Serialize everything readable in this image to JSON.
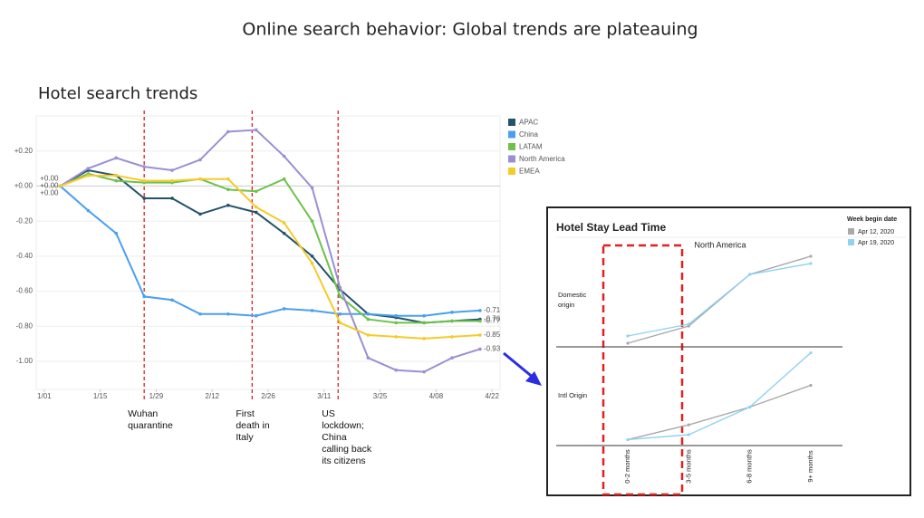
{
  "slide_title": "Online search behavior: Global trends are plateauing",
  "chart_data": [
    {
      "type": "line",
      "title": "Hotel search trends",
      "x": [
        4,
        11,
        18,
        25,
        32,
        39,
        46,
        53,
        60,
        67,
        74,
        81,
        88,
        95,
        102,
        109
      ],
      "xlim": [
        -2,
        114
      ],
      "xticks": [
        {
          "value": 0,
          "label": "1/01"
        },
        {
          "value": 14,
          "label": "1/15"
        },
        {
          "value": 28,
          "label": "1/29"
        },
        {
          "value": 42,
          "label": "2/12"
        },
        {
          "value": 56,
          "label": "2/26"
        },
        {
          "value": 70,
          "label": "3/11"
        },
        {
          "value": 84,
          "label": "3/25"
        },
        {
          "value": 98,
          "label": "4/08"
        },
        {
          "value": 112,
          "label": "4/22"
        }
      ],
      "ylim": [
        -1.16,
        0.4
      ],
      "yticks": [
        {
          "value": 0.2,
          "label": "+0.20"
        },
        {
          "value": 0,
          "label": "+0.00"
        },
        {
          "value": -0.2,
          "label": "-0.20"
        },
        {
          "value": -0.4,
          "label": "-0.40"
        },
        {
          "value": -0.6,
          "label": "-0.60"
        },
        {
          "value": -0.8,
          "label": "-0.80"
        },
        {
          "value": -1.0,
          "label": "-1.00"
        }
      ],
      "grid": true,
      "legend": "right",
      "series": [
        {
          "name": "APAC",
          "color": "#23536a",
          "values": [
            0,
            0.09,
            0.06,
            -0.07,
            -0.07,
            -0.16,
            -0.11,
            -0.15,
            -0.27,
            -0.4,
            -0.59,
            -0.73,
            -0.75,
            -0.78,
            -0.77,
            -0.76
          ],
          "value_labels": [
            "+0.00",
            null,
            null,
            null,
            null,
            null,
            null,
            null,
            null,
            null,
            null,
            null,
            null,
            null,
            null,
            null
          ]
        },
        {
          "name": "China",
          "color": "#4a9ff0",
          "values": [
            0,
            -0.14,
            -0.27,
            -0.63,
            -0.65,
            -0.73,
            -0.73,
            -0.74,
            -0.7,
            -0.71,
            -0.73,
            -0.73,
            -0.74,
            -0.74,
            -0.72,
            -0.71
          ]
        },
        {
          "name": "LATAM",
          "color": "#6cc24a",
          "values": [
            0,
            0.07,
            0.03,
            0.02,
            0.02,
            0.04,
            -0.02,
            -0.03,
            0.04,
            -0.2,
            -0.63,
            -0.76,
            -0.78,
            -0.78,
            -0.77,
            -0.77
          ],
          "value_labels": [
            "+0.00",
            null,
            null,
            null,
            null,
            null,
            null,
            null,
            null,
            null,
            null,
            null,
            null,
            null,
            null,
            null
          ]
        },
        {
          "name": "North America",
          "color": "#9a8fd4",
          "values": [
            0,
            0.1,
            0.16,
            0.11,
            0.09,
            0.15,
            0.31,
            0.32,
            0.17,
            -0.01,
            -0.58,
            -0.98,
            -1.05,
            -1.06,
            -0.98,
            -0.93
          ],
          "value_labels": [
            "+0.00",
            null,
            null,
            null,
            null,
            null,
            null,
            null,
            null,
            null,
            null,
            null,
            null,
            null,
            null,
            null
          ]
        },
        {
          "name": "EMEA",
          "color": "#f5cb2b",
          "values": [
            0,
            0.06,
            0.06,
            0.03,
            0.03,
            0.04,
            0.04,
            -0.12,
            -0.21,
            -0.44,
            -0.78,
            -0.85,
            -0.86,
            -0.87,
            -0.86,
            -0.85
          ]
        }
      ],
      "annotations": [
        {
          "x": 25,
          "lines": [
            "Wuhan",
            "quarantine"
          ]
        },
        {
          "x": 52,
          "lines": [
            "First",
            "death in",
            "Italy"
          ]
        },
        {
          "x": 73.5,
          "lines": [
            "US",
            "lockdown;",
            "China",
            "calling back",
            "its citizens"
          ]
        }
      ]
    },
    {
      "type": "line",
      "title": "Hotel Stay Lead Time",
      "panel": "North America",
      "legend_title": "Week begin date",
      "categories": [
        "0-2 months",
        "3-5 months",
        "6-8 months",
        "9+ months"
      ],
      "ylim": [
        0,
        1
      ],
      "facets": [
        {
          "label": [
            "Domestic",
            "origin"
          ],
          "series": [
            {
              "name": "Apr 12, 2020",
              "color": "#a9a9a9",
              "values": [
                0.04,
                0.23,
                0.8,
                1.0
              ]
            },
            {
              "name": "Apr 19, 2020",
              "color": "#8fd3f0",
              "values": [
                0.12,
                0.25,
                0.8,
                0.92
              ]
            }
          ]
        },
        {
          "label": [
            "Intl Origin"
          ],
          "series": [
            {
              "name": "Apr 12, 2020",
              "color": "#a9a9a9",
              "values": [
                0.06,
                0.21,
                0.39,
                0.61
              ]
            },
            {
              "name": "Apr 19, 2020",
              "color": "#8fd3f0",
              "values": [
                0.06,
                0.11,
                0.39,
                0.94
              ]
            }
          ]
        }
      ]
    }
  ]
}
